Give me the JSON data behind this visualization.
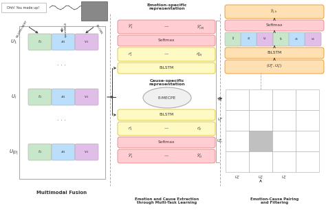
{
  "fig_width": 4.74,
  "fig_height": 3.11,
  "dpi": 100,
  "background": "#ffffff",
  "section1_title": "Multimodal Fusion",
  "section2_title": "Emotion and Cause Extraction\nthrough Multi-Task Learning",
  "section3_title": "Emotion-Cause Pairing\nand Filtering",
  "emotion_specific_title": "Emotion-specific\nrepresentation",
  "cause_specific_title": "Cause-specific\nrepresentation",
  "colors": {
    "green_cell": "#c8e6c9",
    "blue_cell": "#bbdefb",
    "purple_cell": "#e1bee7",
    "pink_box": "#ffcdd2",
    "yellow_box": "#fff9c4",
    "orange_box": "#ffe0b2",
    "ellipse_fill": "#f0f0f0",
    "grid_highlight": "#c0c0c0",
    "text": "#333333",
    "arrow": "#333333",
    "dashed": "#aaaaaa",
    "box_border": "#aaaaaa",
    "pink_border": "#e07070",
    "yellow_border": "#d4b800",
    "orange_border": "#e08000"
  }
}
